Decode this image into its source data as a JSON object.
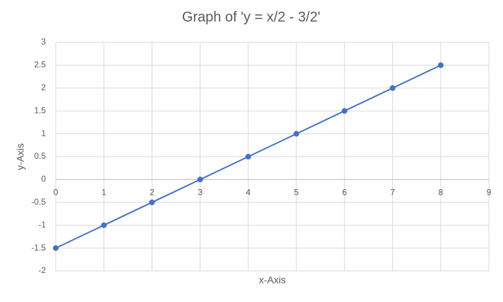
{
  "chart_data": {
    "type": "scatter-line",
    "title": "Graph of 'y = x/2 - 3/2'",
    "x_label": "x-Axis",
    "y_label": "y-Axis",
    "x": [
      0,
      1,
      2,
      3,
      4,
      5,
      6,
      7,
      8
    ],
    "series": [
      {
        "values": [
          -1.5,
          -1,
          -0.5,
          0,
          0.5,
          1,
          1.5,
          2,
          2.5
        ],
        "color": "#4472c4"
      }
    ],
    "xlim": [
      0,
      9
    ],
    "xticks": [
      0,
      1,
      2,
      3,
      4,
      5,
      6,
      7,
      8,
      9
    ],
    "ylim": [
      -2,
      3
    ],
    "yticks": [
      -2,
      -1.5,
      -1,
      -0.5,
      0,
      0.5,
      1,
      1.5,
      2,
      2.5,
      3
    ],
    "grid": true
  }
}
